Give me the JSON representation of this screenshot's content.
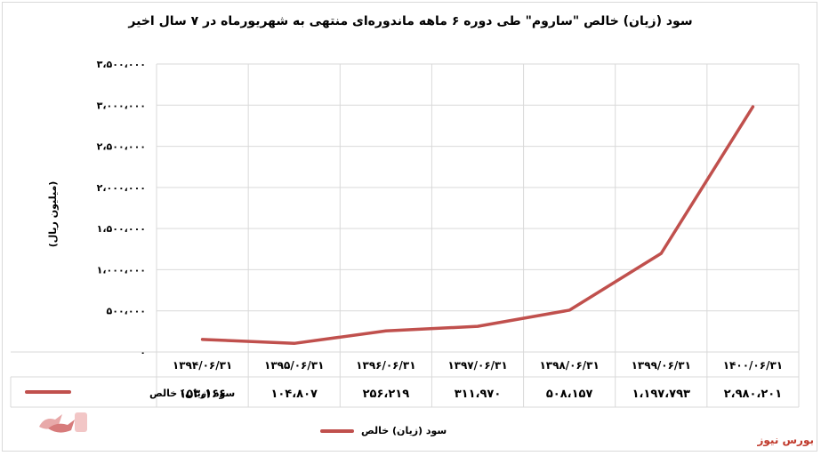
{
  "title": "سود (زیان) خالص \"ساروم\" طی دوره ۶ ماهه ماندوره‌ای منتهی به شهریورماه در ۷ سال اخیر",
  "source_label": "بورس نیوز",
  "colors": {
    "series": "#c0504d",
    "grid": "#d9d9d9",
    "source": "#c0392b"
  },
  "chart_data": {
    "type": "line",
    "title": "سود (زیان) خالص \"ساروم\" طی دوره ۶ ماهه ماندوره‌ای منتهی به شهریورماه در ۷ سال اخیر",
    "ylabel": "(میلیون ریال)",
    "xlabel": "",
    "ylim": [
      0,
      3500000
    ],
    "yticks": [
      0,
      500000,
      1000000,
      1500000,
      2000000,
      2500000,
      3000000,
      3500000
    ],
    "ytick_labels": [
      "۰",
      "۵۰۰،۰۰۰",
      "۱،۰۰۰،۰۰۰",
      "۱،۵۰۰،۰۰۰",
      "۲،۰۰۰،۰۰۰",
      "۲،۵۰۰،۰۰۰",
      "۳،۰۰۰،۰۰۰",
      "۳،۵۰۰،۰۰۰"
    ],
    "categories": [
      "۱۳۹۴/۰۶/۳۱",
      "۱۳۹۵/۰۶/۳۱",
      "۱۳۹۶/۰۶/۳۱",
      "۱۳۹۷/۰۶/۳۱",
      "۱۳۹۸/۰۶/۳۱",
      "۱۳۹۹/۰۶/۳۱",
      "۱۴۰۰/۰۶/۳۱"
    ],
    "grid": true,
    "legend_position": "bottom",
    "series": [
      {
        "name": "سود (زیان) خالص",
        "values": [
          153166,
          104807,
          256219,
          311970,
          508157,
          1197793,
          2980201
        ],
        "value_labels": [
          "۱۵۳،۱۶۶",
          "۱۰۴،۸۰۷",
          "۲۵۶،۲۱۹",
          "۳۱۱،۹۷۰",
          "۵۰۸،۱۵۷",
          "۱،۱۹۷،۷۹۳",
          "۲،۹۸۰،۲۰۱"
        ]
      }
    ]
  }
}
